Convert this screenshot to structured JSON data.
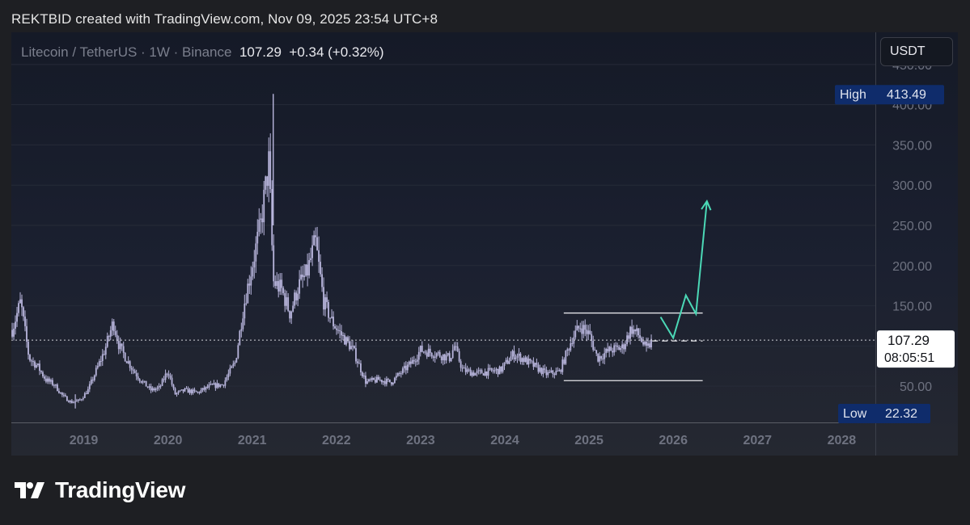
{
  "header": {
    "text": "REKTBID created with TradingView.com, Nov 09, 2025 23:54 UTC+8"
  },
  "legend": {
    "symbol": "Litecoin / TetherUS · 1W · Binance",
    "price": "107.29",
    "change": "+0.34 (+0.32%)"
  },
  "currency_button": {
    "label": "USDT"
  },
  "markers": {
    "high_label": "High",
    "high_value": "413.49",
    "low_label": "Low",
    "low_value": "22.32",
    "last_price": "107.29",
    "countdown": "08:05:51"
  },
  "branding": {
    "logo_text": "TradingView"
  },
  "colors": {
    "candle": "#b9b6dd",
    "grid": "#262b38",
    "axis_text": "#6e7280",
    "highlight_label_bg": "#0f2c6b",
    "projection": "#4bd8b6",
    "range_lines": "#e6e6ea"
  },
  "chart_data": {
    "type": "candlestick",
    "symbol": "Litecoin / TetherUS",
    "interval": "1W",
    "exchange": "Binance",
    "y_axis": {
      "ticks": [
        50,
        100,
        150,
        200,
        250,
        300,
        350,
        400,
        450
      ],
      "tick_labels": [
        "50.00",
        "",
        "150.00",
        "200.00",
        "250.00",
        "300.00",
        "350.00",
        "400.00",
        "450.00"
      ],
      "range": [
        5,
        490
      ]
    },
    "x_axis": {
      "tick_labels": [
        "2019",
        "2020",
        "2021",
        "2022",
        "2023",
        "2024",
        "2025",
        "2026",
        "2027",
        "2028"
      ],
      "range": [
        2018.24,
        2028.5
      ]
    },
    "closes": [
      [
        2018.25,
        120
      ],
      [
        2018.35,
        155
      ],
      [
        2018.45,
        85
      ],
      [
        2018.55,
        75
      ],
      [
        2018.65,
        58
      ],
      [
        2018.75,
        52
      ],
      [
        2018.85,
        38
      ],
      [
        2018.95,
        30
      ],
      [
        2019.05,
        32
      ],
      [
        2019.15,
        45
      ],
      [
        2019.25,
        70
      ],
      [
        2019.35,
        95
      ],
      [
        2019.45,
        130
      ],
      [
        2019.52,
        100
      ],
      [
        2019.6,
        85
      ],
      [
        2019.7,
        68
      ],
      [
        2019.8,
        55
      ],
      [
        2019.9,
        45
      ],
      [
        2020.0,
        48
      ],
      [
        2020.1,
        70
      ],
      [
        2020.18,
        40
      ],
      [
        2020.3,
        45
      ],
      [
        2020.45,
        42
      ],
      [
        2020.6,
        50
      ],
      [
        2020.75,
        52
      ],
      [
        2020.9,
        80
      ],
      [
        2021.0,
        150
      ],
      [
        2021.1,
        200
      ],
      [
        2021.2,
        250
      ],
      [
        2021.3,
        330
      ],
      [
        2021.35,
        180
      ],
      [
        2021.45,
        170
      ],
      [
        2021.55,
        140
      ],
      [
        2021.65,
        175
      ],
      [
        2021.75,
        190
      ],
      [
        2021.85,
        230
      ],
      [
        2021.95,
        155
      ],
      [
        2022.05,
        130
      ],
      [
        2022.15,
        115
      ],
      [
        2022.3,
        95
      ],
      [
        2022.45,
        55
      ],
      [
        2022.6,
        58
      ],
      [
        2022.75,
        55
      ],
      [
        2022.9,
        70
      ],
      [
        2023.0,
        80
      ],
      [
        2023.1,
        95
      ],
      [
        2023.3,
        90
      ],
      [
        2023.45,
        85
      ],
      [
        2023.5,
        100
      ],
      [
        2023.6,
        70
      ],
      [
        2023.75,
        66
      ],
      [
        2023.9,
        68
      ],
      [
        2024.05,
        70
      ],
      [
        2024.2,
        90
      ],
      [
        2024.3,
        85
      ],
      [
        2024.45,
        75
      ],
      [
        2024.6,
        65
      ],
      [
        2024.75,
        68
      ],
      [
        2024.9,
        110
      ],
      [
        2025.0,
        125
      ],
      [
        2025.1,
        115
      ],
      [
        2025.2,
        85
      ],
      [
        2025.35,
        95
      ],
      [
        2025.5,
        98
      ],
      [
        2025.6,
        122
      ],
      [
        2025.7,
        112
      ],
      [
        2025.78,
        95
      ],
      [
        2025.85,
        107
      ]
    ],
    "last_price": 107.29,
    "high": 413.49,
    "low": 22.32,
    "range_box": {
      "x_start": 2024.8,
      "x_end": 2026.45,
      "top": 141,
      "bottom": 57
    },
    "projection_path": [
      [
        2025.95,
        136
      ],
      [
        2026.1,
        110
      ],
      [
        2026.25,
        163
      ],
      [
        2026.37,
        140
      ],
      [
        2026.5,
        280
      ]
    ]
  }
}
